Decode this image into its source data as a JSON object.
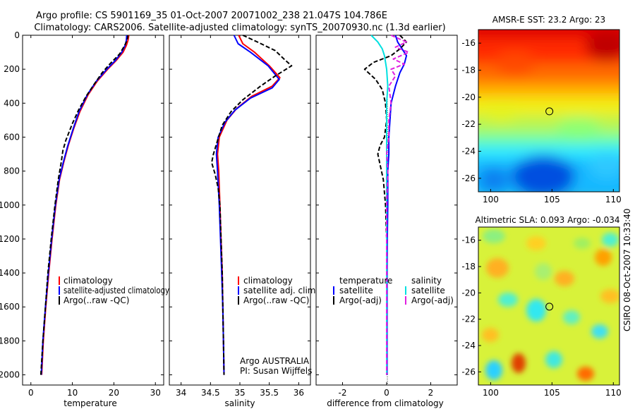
{
  "header": {
    "line1": "Argo profile: CS 5901169_35 01-Oct-2007 20071002_238 21.047S 104.786E",
    "line2": "Climatology: CARS2006. Satellite-adjusted climatology: synTS_20070930.nc (1.3d earlier)"
  },
  "side_stamp": "CSIRO 08-Oct-2007 10:33:40",
  "colors": {
    "red": "#ff0000",
    "blue": "#0000ff",
    "black": "#000000",
    "cyan": "#00e0e0",
    "magenta": "#e020e0"
  },
  "chart_data": [
    {
      "id": "temperature",
      "type": "line",
      "xlabel": "temperature",
      "xlim": [
        -2,
        32
      ],
      "ylim": [
        2060,
        0
      ],
      "xticks": [
        0,
        10,
        20,
        30
      ],
      "yticks": [
        0,
        200,
        400,
        600,
        800,
        1000,
        1200,
        1400,
        1600,
        1800,
        2000
      ],
      "legend": [
        "climatology",
        "satellite-adjusted climatology",
        "Argo(..raw -QC)"
      ],
      "series": [
        {
          "name": "climatology",
          "color": "red",
          "points": [
            [
              23.6,
              0
            ],
            [
              23.4,
              30
            ],
            [
              23.0,
              60
            ],
            [
              22.2,
              100
            ],
            [
              20.5,
              150
            ],
            [
              18.5,
              200
            ],
            [
              16.0,
              270
            ],
            [
              13.8,
              350
            ],
            [
              11.8,
              450
            ],
            [
              10.3,
              550
            ],
            [
              9.0,
              650
            ],
            [
              7.9,
              750
            ],
            [
              6.9,
              850
            ],
            [
              6.0,
              1000
            ],
            [
              5.1,
              1200
            ],
            [
              4.3,
              1400
            ],
            [
              3.6,
              1600
            ],
            [
              3.0,
              1800
            ],
            [
              2.6,
              2000
            ]
          ]
        },
        {
          "name": "satellite-adjusted climatology",
          "color": "blue",
          "points": [
            [
              23.1,
              0
            ],
            [
              23.0,
              30
            ],
            [
              22.7,
              60
            ],
            [
              21.9,
              100
            ],
            [
              20.3,
              150
            ],
            [
              18.3,
              200
            ],
            [
              15.8,
              270
            ],
            [
              13.6,
              350
            ],
            [
              11.6,
              450
            ],
            [
              10.2,
              550
            ],
            [
              8.9,
              650
            ],
            [
              7.8,
              750
            ],
            [
              6.8,
              850
            ],
            [
              5.9,
              1000
            ],
            [
              5.0,
              1200
            ],
            [
              4.2,
              1400
            ],
            [
              3.5,
              1600
            ],
            [
              2.9,
              1800
            ],
            [
              2.5,
              2000
            ]
          ]
        },
        {
          "name": "Argo(..raw -QC)",
          "color": "black",
          "dashed": true,
          "points": [
            [
              23.4,
              0
            ],
            [
              23.2,
              30
            ],
            [
              22.6,
              60
            ],
            [
              21.4,
              110
            ],
            [
              19.0,
              170
            ],
            [
              17.2,
              220
            ],
            [
              15.2,
              290
            ],
            [
              13.3,
              360
            ],
            [
              11.5,
              440
            ],
            [
              10.0,
              520
            ],
            [
              8.4,
              620
            ],
            [
              7.7,
              680
            ],
            [
              7.3,
              750
            ],
            [
              6.6,
              850
            ],
            [
              5.8,
              1000
            ],
            [
              4.9,
              1200
            ],
            [
              4.1,
              1400
            ],
            [
              3.5,
              1600
            ],
            [
              2.9,
              1800
            ],
            [
              2.4,
              2000
            ]
          ]
        }
      ]
    },
    {
      "id": "salinity",
      "type": "line",
      "xlabel": "salinity",
      "xlim": [
        33.8,
        36.2
      ],
      "ylim": [
        2060,
        0
      ],
      "xticks": [
        34,
        34.5,
        35,
        35.5,
        36
      ],
      "legend": [
        "climatology",
        "satellite adj. clim.",
        "Argo(..raw -QC)"
      ],
      "notes": [
        "Argo AUSTRALIA",
        "PI: Susan Wijffels"
      ],
      "series": [
        {
          "name": "climatology",
          "color": "red",
          "points": [
            [
              34.98,
              0
            ],
            [
              35.05,
              50
            ],
            [
              35.25,
              100
            ],
            [
              35.5,
              180
            ],
            [
              35.68,
              250
            ],
            [
              35.55,
              300
            ],
            [
              35.2,
              360
            ],
            [
              34.95,
              430
            ],
            [
              34.78,
              500
            ],
            [
              34.65,
              600
            ],
            [
              34.62,
              700
            ],
            [
              34.64,
              800
            ],
            [
              34.66,
              1000
            ],
            [
              34.68,
              1200
            ],
            [
              34.7,
              1400
            ],
            [
              34.71,
              1600
            ],
            [
              34.72,
              1800
            ],
            [
              34.73,
              2000
            ]
          ]
        },
        {
          "name": "satellite adj. clim.",
          "color": "blue",
          "points": [
            [
              34.9,
              0
            ],
            [
              34.97,
              50
            ],
            [
              35.18,
              100
            ],
            [
              35.48,
              180
            ],
            [
              35.67,
              260
            ],
            [
              35.55,
              310
            ],
            [
              35.18,
              370
            ],
            [
              34.92,
              440
            ],
            [
              34.75,
              510
            ],
            [
              34.63,
              600
            ],
            [
              34.6,
              700
            ],
            [
              34.62,
              800
            ],
            [
              34.65,
              1000
            ],
            [
              34.67,
              1200
            ],
            [
              34.69,
              1400
            ],
            [
              34.71,
              1600
            ],
            [
              34.72,
              1800
            ],
            [
              34.73,
              2000
            ]
          ]
        },
        {
          "name": "Argo(..raw -QC)",
          "color": "black",
          "dashed": true,
          "points": [
            [
              35.05,
              0
            ],
            [
              35.3,
              40
            ],
            [
              35.6,
              90
            ],
            [
              35.75,
              140
            ],
            [
              35.88,
              180
            ],
            [
              35.6,
              240
            ],
            [
              35.35,
              300
            ],
            [
              35.05,
              380
            ],
            [
              34.85,
              450
            ],
            [
              34.7,
              530
            ],
            [
              34.62,
              620
            ],
            [
              34.55,
              700
            ],
            [
              34.52,
              750
            ],
            [
              34.58,
              820
            ],
            [
              34.63,
              900
            ],
            [
              34.66,
              1000
            ],
            [
              34.68,
              1200
            ],
            [
              34.7,
              1400
            ],
            [
              34.71,
              1600
            ],
            [
              34.72,
              1800
            ],
            [
              34.73,
              2000
            ]
          ]
        }
      ]
    },
    {
      "id": "difference",
      "type": "line",
      "xlabel": "difference from climatology",
      "xlim": [
        -3.2,
        3.2
      ],
      "ylim": [
        2060,
        0
      ],
      "xticks": [
        -2,
        0,
        2
      ],
      "legend_temperature": {
        "title": "temperature",
        "items": [
          "satellite",
          "Argo(-adj)"
        ]
      },
      "legend_salinity": {
        "title": "salinity",
        "items": [
          "satellite",
          "Argo(-adj)"
        ]
      },
      "series": [
        {
          "name": "temperature satellite",
          "color": "blue",
          "points": [
            [
              0.4,
              0
            ],
            [
              0.5,
              40
            ],
            [
              0.7,
              80
            ],
            [
              0.9,
              120
            ],
            [
              0.8,
              170
            ],
            [
              0.6,
              220
            ],
            [
              0.4,
              300
            ],
            [
              0.2,
              400
            ],
            [
              0.15,
              500
            ],
            [
              0.1,
              600
            ],
            [
              0.1,
              700
            ],
            [
              0.05,
              800
            ],
            [
              0.05,
              1000
            ],
            [
              0.03,
              1200
            ],
            [
              0.02,
              1400
            ],
            [
              0.02,
              1600
            ],
            [
              0.02,
              1800
            ],
            [
              0.02,
              2000
            ]
          ]
        },
        {
          "name": "temperature Argo(-adj)",
          "color": "black",
          "dashed": true,
          "points": [
            [
              0.6,
              0
            ],
            [
              0.9,
              40
            ],
            [
              0.6,
              80
            ],
            [
              0.2,
              120
            ],
            [
              -0.6,
              160
            ],
            [
              -1.0,
              200
            ],
            [
              -0.5,
              260
            ],
            [
              -0.2,
              320
            ],
            [
              -0.05,
              400
            ],
            [
              0.0,
              500
            ],
            [
              -0.1,
              600
            ],
            [
              -0.3,
              650
            ],
            [
              -0.4,
              700
            ],
            [
              -0.3,
              760
            ],
            [
              -0.15,
              850
            ],
            [
              -0.05,
              1000
            ],
            [
              0.0,
              1200
            ],
            [
              0.0,
              1400
            ],
            [
              0.0,
              1600
            ],
            [
              0.0,
              1800
            ],
            [
              0.0,
              2000
            ]
          ]
        },
        {
          "name": "salinity satellite",
          "color": "cyan",
          "points": [
            [
              -0.7,
              0
            ],
            [
              -0.4,
              40
            ],
            [
              -0.2,
              80
            ],
            [
              -0.1,
              120
            ],
            [
              0.0,
              200
            ],
            [
              0.05,
              300
            ],
            [
              0.0,
              400
            ],
            [
              0.0,
              600
            ],
            [
              0.0,
              800
            ],
            [
              0.0,
              1000
            ],
            [
              0.0,
              1200
            ],
            [
              0.0,
              1400
            ],
            [
              0.0,
              1600
            ],
            [
              0.0,
              1800
            ],
            [
              0.0,
              2000
            ]
          ]
        },
        {
          "name": "salinity Argo(-adj)",
          "color": "magenta",
          "dashed": true,
          "points": [
            [
              0.2,
              0
            ],
            [
              0.9,
              40
            ],
            [
              0.4,
              70
            ],
            [
              1.0,
              100
            ],
            [
              0.3,
              140
            ],
            [
              0.8,
              170
            ],
            [
              0.2,
              200
            ],
            [
              0.4,
              240
            ],
            [
              0.1,
              300
            ],
            [
              0.2,
              400
            ],
            [
              0.1,
              500
            ],
            [
              0.1,
              600
            ],
            [
              0.0,
              700
            ],
            [
              0.05,
              800
            ],
            [
              0.0,
              1000
            ],
            [
              0.0,
              1200
            ],
            [
              0.0,
              1400
            ],
            [
              0.0,
              1600
            ],
            [
              0.0,
              1800
            ],
            [
              0.0,
              2000
            ]
          ]
        }
      ]
    },
    {
      "id": "sst_map",
      "type": "heatmap",
      "title": "AMSR-E SST: 23.2 Argo: 23",
      "xlim": [
        99,
        110.5
      ],
      "ylim": [
        -27,
        -15
      ],
      "xticks": [
        100,
        105,
        110
      ],
      "yticks": [
        -16,
        -18,
        -20,
        -22,
        -24,
        -26
      ],
      "argo_position": [
        104.786,
        -21.047
      ]
    },
    {
      "id": "sla_map",
      "type": "heatmap",
      "title": "Altimetric SLA: 0.093 Argo: -0.034",
      "xlim": [
        99,
        110.5
      ],
      "ylim": [
        -27,
        -15
      ],
      "xticks": [
        100,
        105,
        110
      ],
      "yticks": [
        -16,
        -18,
        -20,
        -22,
        -24,
        -26
      ],
      "argo_position": [
        104.786,
        -21.047
      ]
    }
  ]
}
